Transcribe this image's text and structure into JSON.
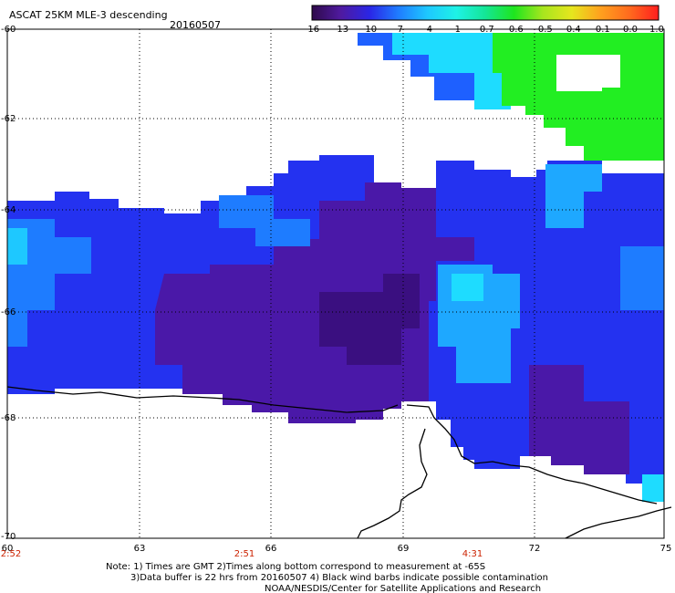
{
  "title": {
    "product": "ASCAT 25KM MLE-3 descending",
    "date": "20160507"
  },
  "colorbar": {
    "labels": [
      "-16",
      "-13",
      "-10",
      "-7",
      "-4",
      "-1",
      "-0.7",
      "-0.6",
      "-0.5",
      "-0.4",
      "-0.1",
      "0.0",
      "1.0"
    ],
    "colors": [
      "#2e0a4a",
      "#4f1aa0",
      "#2a26e6",
      "#1f7dff",
      "#1ec8ff",
      "#1ef2e6",
      "#14e696",
      "#1ee61e",
      "#a8e61e",
      "#e6e61e",
      "#ffa01e",
      "#ff6a1e",
      "#ff1e1e"
    ]
  },
  "map": {
    "lat_labels": [
      "-60",
      "-62",
      "-64",
      "-66",
      "-68",
      "-70"
    ],
    "lon_labels": [
      "60",
      "63",
      "66",
      "69",
      "72",
      "75"
    ],
    "time_labels": [
      "2:52",
      "2:51",
      "4:31"
    ],
    "colors": {
      "deep": "#4a18a8",
      "blue": "#2432f0",
      "mid": "#1e60ff",
      "light": "#1ea8ff",
      "cyan": "#1edcff",
      "green": "#22ee22",
      "coast": "#000000",
      "time_text": "#cc2200"
    }
  },
  "notes": [
    "Note: 1) Times are GMT 2)Times along bottom correspond to measurement at -65S",
    "3)Data buffer is 22 hrs from 20160507 4) Black wind barbs indicate possible contamination",
    "NOAA/NESDIS/Center for Satellite Applications and Research"
  ]
}
